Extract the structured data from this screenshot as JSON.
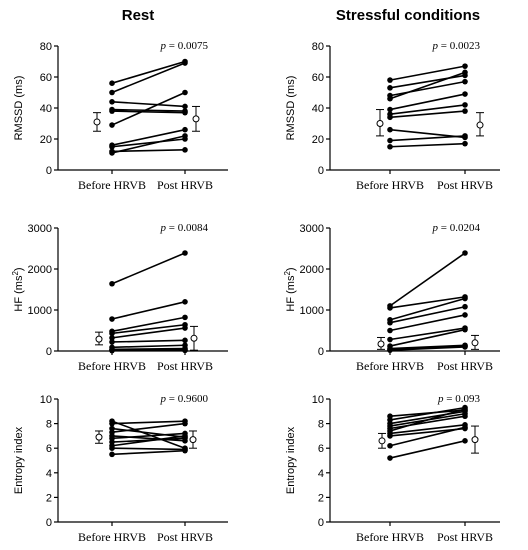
{
  "column_titles": [
    "Rest",
    "Stressful conditions"
  ],
  "chart_data": [
    {
      "type": "scatter",
      "panel": "rest-rmssd",
      "ylabel": "RMSSD (ms)",
      "ylim": [
        0,
        80
      ],
      "yticks": [
        0,
        20,
        40,
        60,
        80
      ],
      "categories": [
        "Before HRVB",
        "Post HRVB"
      ],
      "annotation": {
        "prefix": "p",
        "text": " = 0.0075"
      },
      "pairs": [
        [
          56,
          70
        ],
        [
          50,
          69
        ],
        [
          44,
          41
        ],
        [
          38,
          37
        ],
        [
          29,
          50
        ],
        [
          16,
          26
        ],
        [
          15,
          20
        ],
        [
          12,
          13
        ],
        [
          11,
          22
        ],
        [
          39,
          38
        ]
      ],
      "summary": [
        {
          "mean": 31,
          "low": 25,
          "high": 37
        },
        {
          "mean": 33,
          "low": 25,
          "high": 41
        }
      ]
    },
    {
      "type": "scatter",
      "panel": "stress-rmssd",
      "ylabel": "RMSSD (ms)",
      "ylim": [
        0,
        80
      ],
      "yticks": [
        0,
        20,
        40,
        60,
        80
      ],
      "categories": [
        "Before HRVB",
        "Post HRVB"
      ],
      "annotation": {
        "prefix": "p",
        "text": " = 0.0023"
      },
      "pairs": [
        [
          58,
          67
        ],
        [
          53,
          61
        ],
        [
          48,
          57
        ],
        [
          46,
          63
        ],
        [
          39,
          49
        ],
        [
          36,
          42
        ],
        [
          34,
          38
        ],
        [
          26,
          21
        ],
        [
          19,
          22
        ],
        [
          15,
          17
        ]
      ],
      "summary": [
        {
          "mean": 30,
          "low": 22,
          "high": 39
        },
        {
          "mean": 29,
          "low": 22,
          "high": 37
        }
      ]
    },
    {
      "type": "scatter",
      "panel": "rest-hf",
      "ylabel": "HF (ms",
      "ylabel_sup": "2",
      "ylabel_close": ")",
      "ylim": [
        0,
        3000
      ],
      "yticks": [
        0,
        1000,
        2000,
        3000
      ],
      "categories": [
        "Before HRVB",
        "Post HRVB"
      ],
      "annotation": {
        "prefix": "p",
        "text": " = 0.0084"
      },
      "pairs": [
        [
          1640,
          2390
        ],
        [
          780,
          1200
        ],
        [
          480,
          820
        ],
        [
          430,
          640
        ],
        [
          320,
          560
        ],
        [
          220,
          260
        ],
        [
          90,
          140
        ],
        [
          40,
          60
        ],
        [
          20,
          30
        ],
        [
          10,
          15
        ]
      ],
      "summary": [
        {
          "mean": 290,
          "low": 150,
          "high": 460
        },
        {
          "mean": 310,
          "low": 20,
          "high": 600
        }
      ]
    },
    {
      "type": "scatter",
      "panel": "stress-hf",
      "ylabel": "HF (ms",
      "ylabel_sup": "2",
      "ylabel_close": ")",
      "ylim": [
        0,
        3000
      ],
      "yticks": [
        0,
        1000,
        2000,
        3000
      ],
      "categories": [
        "Before HRVB",
        "Post HRVB"
      ],
      "annotation": {
        "prefix": "p",
        "text": " = 0.0204"
      },
      "pairs": [
        [
          1100,
          2390
        ],
        [
          1050,
          1320
        ],
        [
          760,
          1280
        ],
        [
          690,
          1080
        ],
        [
          500,
          880
        ],
        [
          280,
          560
        ],
        [
          120,
          520
        ],
        [
          60,
          140
        ],
        [
          30,
          120
        ],
        [
          20,
          100
        ]
      ],
      "summary": [
        {
          "mean": 170,
          "low": 40,
          "high": 330
        },
        {
          "mean": 200,
          "low": 40,
          "high": 380
        }
      ]
    },
    {
      "type": "scatter",
      "panel": "rest-entropy",
      "ylabel": "Entropy index",
      "ylim": [
        0,
        10
      ],
      "yticks": [
        0,
        2,
        4,
        6,
        8,
        10
      ],
      "categories": [
        "Before HRVB",
        "Post HRVB"
      ],
      "annotation": {
        "prefix": "p",
        "text": " = 0.9600"
      },
      "pairs": [
        [
          8.2,
          6.0
        ],
        [
          8.0,
          8.2
        ],
        [
          7.6,
          6.9
        ],
        [
          7.3,
          8.0
        ],
        [
          7.0,
          6.6
        ],
        [
          6.8,
          7.2
        ],
        [
          6.5,
          6.8
        ],
        [
          6.2,
          7.0
        ],
        [
          6.0,
          5.9
        ],
        [
          5.5,
          5.8
        ]
      ],
      "summary": [
        {
          "mean": 6.9,
          "low": 6.4,
          "high": 7.4
        },
        {
          "mean": 6.7,
          "low": 6.0,
          "high": 7.4
        }
      ]
    },
    {
      "type": "scatter",
      "panel": "stress-entropy",
      "ylabel": "Entropy index",
      "ylim": [
        0,
        10
      ],
      "yticks": [
        0,
        2,
        4,
        6,
        8,
        10
      ],
      "categories": [
        "Before HRVB",
        "Post HRVB"
      ],
      "annotation": {
        "prefix": "p",
        "text": " = 0.093"
      },
      "pairs": [
        [
          8.6,
          9.1
        ],
        [
          8.3,
          9.3
        ],
        [
          8.0,
          9.0
        ],
        [
          7.8,
          8.8
        ],
        [
          7.6,
          8.6
        ],
        [
          7.4,
          9.2
        ],
        [
          7.2,
          7.9
        ],
        [
          7.0,
          7.6
        ],
        [
          6.2,
          7.7
        ],
        [
          5.2,
          6.6
        ]
      ],
      "summary": [
        {
          "mean": 6.6,
          "low": 6.0,
          "high": 7.2
        },
        {
          "mean": 6.7,
          "low": 5.6,
          "high": 7.8
        }
      ]
    }
  ]
}
